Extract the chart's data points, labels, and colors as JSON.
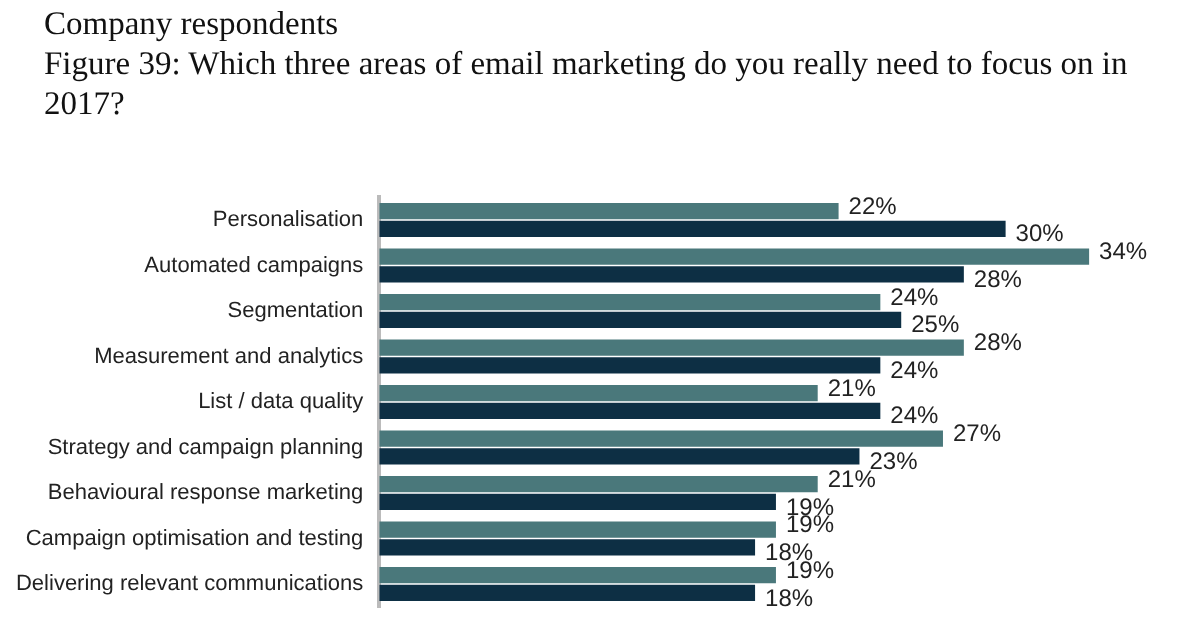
{
  "chart_data": {
    "type": "bar",
    "orientation": "horizontal",
    "subtitle": "Company respondents",
    "title": "Figure 39: Which three areas of email marketing do you really need to focus on in 2017?",
    "categories": [
      "Personalisation",
      "Automated campaigns",
      "Segmentation",
      "Measurement and analytics",
      "List / data quality",
      "Strategy and campaign planning",
      "Behavioural response marketing",
      "Campaign optimisation and testing",
      "Delivering relevant communications"
    ],
    "series": [
      {
        "color": "#4a787b",
        "values": [
          22,
          34,
          24,
          28,
          21,
          27,
          21,
          19,
          19
        ],
        "value_labels": [
          "22%",
          "34%",
          "24%",
          "28%",
          "21%",
          "27%",
          "21%",
          "19%",
          "19%"
        ]
      },
      {
        "color": "#0d2f44",
        "values": [
          30,
          28,
          25,
          24,
          24,
          23,
          19,
          18,
          18
        ],
        "value_labels": [
          "30%",
          "28%",
          "25%",
          "24%",
          "24%",
          "23%",
          "19%",
          "18%",
          "18%"
        ]
      }
    ],
    "legend": false
  }
}
